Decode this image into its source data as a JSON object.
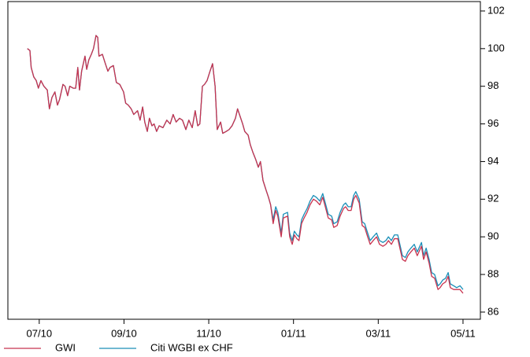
{
  "chart_data": {
    "type": "line",
    "x": [
      -0.28,
      -0.22,
      -0.19,
      -0.13,
      -0.07,
      -0.02,
      0.04,
      0.11,
      0.19,
      0.24,
      0.3,
      0.37,
      0.43,
      0.48,
      0.56,
      0.61,
      0.67,
      0.72,
      0.8,
      0.86,
      0.91,
      0.95,
      1.0,
      1.08,
      1.12,
      1.17,
      1.23,
      1.28,
      1.34,
      1.38,
      1.41,
      1.49,
      1.56,
      1.62,
      1.67,
      1.75,
      1.82,
      1.9,
      1.99,
      2.04,
      2.1,
      2.17,
      2.23,
      2.32,
      2.38,
      2.44,
      2.49,
      2.55,
      2.6,
      2.66,
      2.71,
      2.77,
      2.83,
      2.92,
      3.01,
      3.09,
      3.16,
      3.23,
      3.31,
      3.38,
      3.46,
      3.53,
      3.61,
      3.68,
      3.74,
      3.79,
      3.85,
      3.9,
      3.96,
      4.03,
      4.09,
      4.15,
      4.2,
      4.28,
      4.33,
      4.41,
      4.48,
      4.55,
      4.63,
      4.68,
      4.74,
      4.8,
      4.85,
      4.93,
      4.98,
      5.04,
      5.11,
      5.17,
      5.22,
      5.28,
      5.35,
      5.41,
      5.46,
      5.52,
      5.58,
      5.63,
      5.71,
      5.76,
      5.86,
      5.91,
      5.97,
      6.02,
      6.08,
      6.13,
      6.19,
      6.25,
      6.32,
      6.39,
      6.47,
      6.54,
      6.62,
      6.69,
      6.75,
      6.82,
      6.9,
      6.95,
      7.03,
      7.1,
      7.18,
      7.23,
      7.29,
      7.36,
      7.42,
      7.47,
      7.55,
      7.62,
      7.68,
      7.75,
      7.81,
      7.88,
      7.96,
      8.03,
      8.11,
      8.18,
      8.24,
      8.31,
      8.38,
      8.46,
      8.51,
      8.57,
      8.64,
      8.7,
      8.77,
      8.85,
      8.92,
      9.02,
      9.07,
      9.13,
      9.2,
      9.26,
      9.33,
      9.41,
      9.46,
      9.52,
      9.59,
      9.65,
      9.7,
      9.78,
      9.85,
      9.93,
      10.0
    ],
    "series": [
      {
        "name": "GWI",
        "color": "#c8334f",
        "values": [
          100.0,
          99.9,
          99.0,
          98.5,
          98.3,
          97.9,
          98.3,
          98.0,
          97.8,
          96.8,
          97.4,
          97.7,
          97.0,
          97.3,
          98.1,
          98.0,
          97.5,
          98.0,
          97.9,
          97.9,
          99.0,
          97.8,
          98.8,
          99.6,
          98.9,
          99.4,
          99.7,
          100.0,
          100.7,
          100.6,
          99.6,
          99.7,
          99.2,
          98.8,
          99.0,
          99.1,
          98.2,
          98.1,
          97.7,
          97.1,
          97.0,
          96.8,
          96.5,
          96.7,
          96.2,
          96.9,
          96.1,
          95.6,
          96.3,
          95.9,
          96.0,
          95.6,
          95.9,
          95.8,
          96.2,
          96.0,
          96.5,
          96.1,
          96.3,
          96.2,
          95.7,
          96.2,
          95.8,
          96.7,
          95.9,
          96.0,
          98.0,
          98.1,
          98.3,
          98.8,
          99.2,
          98.0,
          95.7,
          96.1,
          95.5,
          95.6,
          95.7,
          95.9,
          96.3,
          96.8,
          96.4,
          96.0,
          95.6,
          95.4,
          94.9,
          94.5,
          94.1,
          93.7,
          94.0,
          93.0,
          92.5,
          92.1,
          91.7,
          90.7,
          91.4,
          91.1,
          90.0,
          91.0,
          91.1,
          90.0,
          89.6,
          90.1,
          89.9,
          89.8,
          90.7,
          91.0,
          91.3,
          91.7,
          92.0,
          91.9,
          91.7,
          92.1,
          91.6,
          91.0,
          90.9,
          90.5,
          90.6,
          91.1,
          91.5,
          91.6,
          91.4,
          91.4,
          92.0,
          92.2,
          91.8,
          90.6,
          90.5,
          90.0,
          89.6,
          89.8,
          90.0,
          89.6,
          89.5,
          89.6,
          89.8,
          89.6,
          89.9,
          89.9,
          89.4,
          88.8,
          88.7,
          89.0,
          89.2,
          89.4,
          89.0,
          89.5,
          88.8,
          89.2,
          88.6,
          87.9,
          87.8,
          87.2,
          87.3,
          87.5,
          87.6,
          87.9,
          87.3,
          87.2,
          87.2,
          87.2,
          87.0
        ]
      },
      {
        "name": "Citi WGBI ex CHF",
        "color": "#1a8fb8",
        "values": [
          100.0,
          99.9,
          99.0,
          98.5,
          98.3,
          97.9,
          98.3,
          98.0,
          97.8,
          96.8,
          97.4,
          97.7,
          97.0,
          97.3,
          98.1,
          98.0,
          97.5,
          98.0,
          97.9,
          97.9,
          99.0,
          97.8,
          98.8,
          99.6,
          98.9,
          99.4,
          99.7,
          100.0,
          100.7,
          100.6,
          99.6,
          99.7,
          99.2,
          98.8,
          99.0,
          99.1,
          98.2,
          98.1,
          97.7,
          97.1,
          97.0,
          96.8,
          96.5,
          96.7,
          96.2,
          96.9,
          96.1,
          95.6,
          96.3,
          95.9,
          96.0,
          95.6,
          95.9,
          95.8,
          96.2,
          96.0,
          96.5,
          96.1,
          96.3,
          96.2,
          95.7,
          96.2,
          95.8,
          96.7,
          95.9,
          96.0,
          98.0,
          98.1,
          98.3,
          98.8,
          99.2,
          98.0,
          95.7,
          96.1,
          95.5,
          95.6,
          95.7,
          95.9,
          96.3,
          96.8,
          96.4,
          96.0,
          95.6,
          95.4,
          94.9,
          94.5,
          94.1,
          93.7,
          94.0,
          93.0,
          92.5,
          92.1,
          91.7,
          90.9,
          91.6,
          91.3,
          90.2,
          91.2,
          91.3,
          90.2,
          89.8,
          90.3,
          90.1,
          90.0,
          90.9,
          91.2,
          91.5,
          91.9,
          92.2,
          92.1,
          91.9,
          92.3,
          91.8,
          91.2,
          91.1,
          90.7,
          90.8,
          91.3,
          91.7,
          91.8,
          91.6,
          91.6,
          92.2,
          92.4,
          92.0,
          90.8,
          90.7,
          90.2,
          89.8,
          90.0,
          90.2,
          89.8,
          89.7,
          89.8,
          90.0,
          89.8,
          90.1,
          90.1,
          89.6,
          89.0,
          88.9,
          89.2,
          89.4,
          89.6,
          89.2,
          89.7,
          89.0,
          89.4,
          88.8,
          88.1,
          88.0,
          87.4,
          87.5,
          87.7,
          87.8,
          88.1,
          87.5,
          87.4,
          87.3,
          87.4,
          87.2
        ]
      }
    ],
    "xlim": [
      -0.74,
      10.41
    ],
    "xticks": [
      {
        "value": 0,
        "label": "07/10"
      },
      {
        "value": 2,
        "label": "09/10"
      },
      {
        "value": 4,
        "label": "11/10"
      },
      {
        "value": 6,
        "label": "01/11"
      },
      {
        "value": 8,
        "label": "03/11"
      },
      {
        "value": 10,
        "label": "05/11"
      }
    ],
    "ylim": [
      85.62,
      102.5
    ],
    "yticks": [
      86,
      88,
      90,
      92,
      94,
      96,
      98,
      100,
      102
    ],
    "y_axis_side": "right",
    "legend": "bottom-left"
  }
}
